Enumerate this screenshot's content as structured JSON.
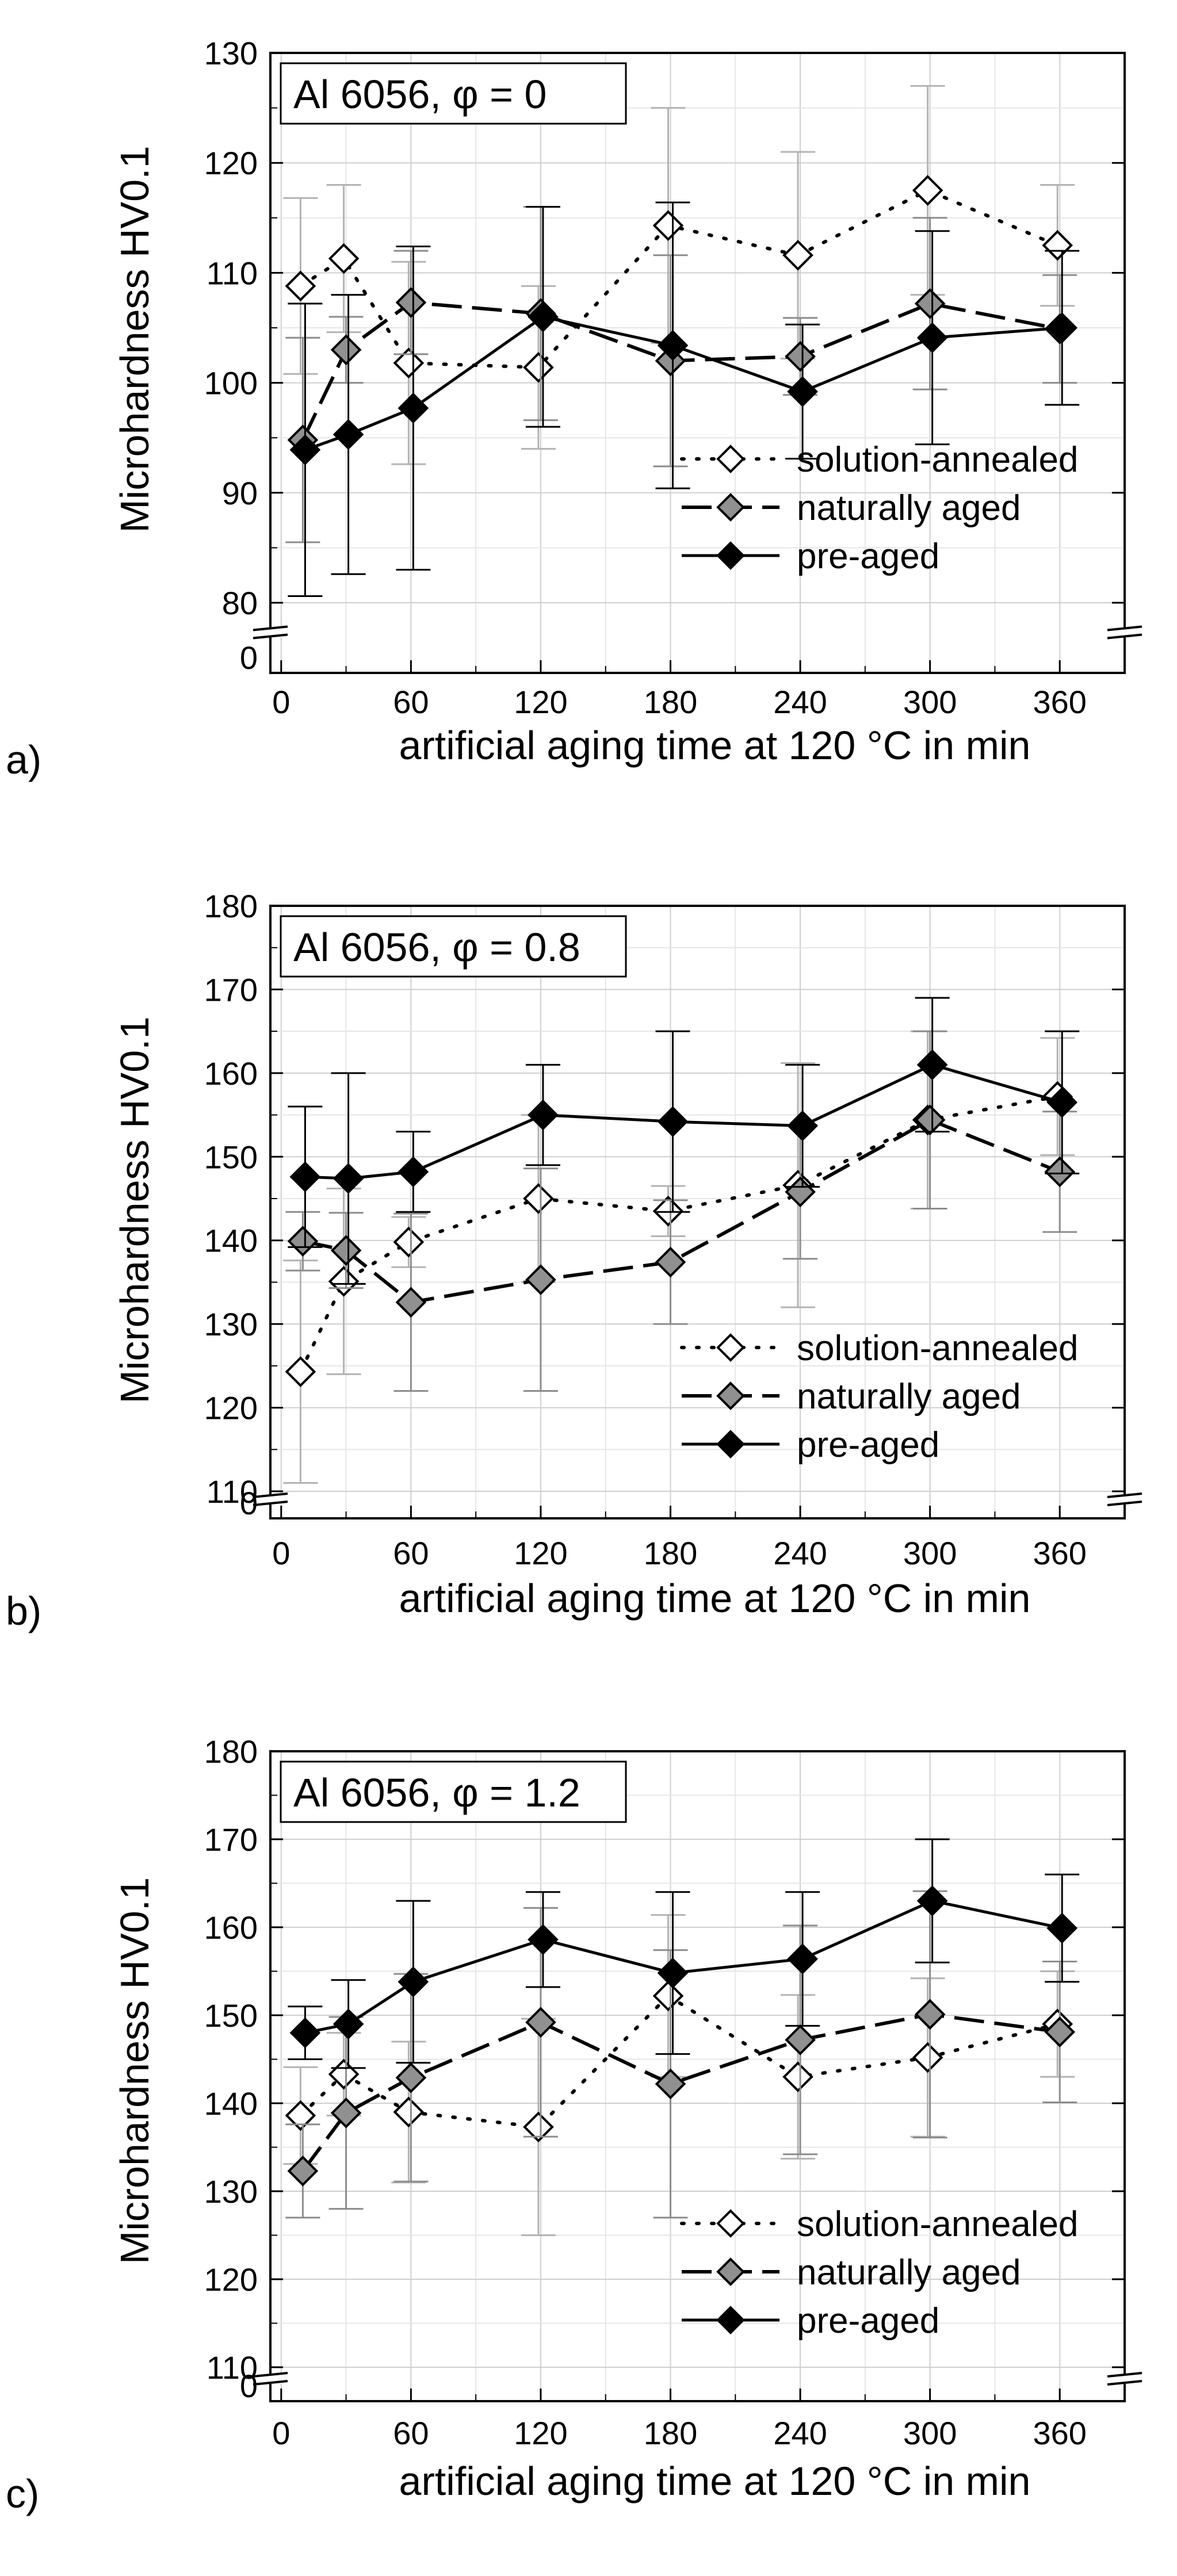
{
  "figure": {
    "legend_entries": [
      "solution-annealed",
      "naturally aged",
      "pre-aged"
    ]
  },
  "chart_data": [
    {
      "type": "line",
      "panel_label": "a)",
      "title": "Al 6056, φ = 0",
      "xlabel": "artificial aging time at 120 °C in min",
      "ylabel": "Microhardness HV0.1",
      "xlim": [
        -5,
        390
      ],
      "ylim": [
        80,
        130
      ],
      "axis_break": true,
      "x_ticks": [
        0,
        60,
        120,
        180,
        240,
        300,
        360
      ],
      "y_ticks": [
        80,
        90,
        100,
        110,
        120,
        130
      ],
      "y_zero_label": "0",
      "grid": true,
      "legend_position": "bottom-right",
      "x": [
        10,
        30,
        60,
        120,
        180,
        240,
        300,
        360
      ],
      "series": [
        {
          "name": "solution-annealed",
          "style": "dotted",
          "marker_color": "#ffffff",
          "values": [
            108.8,
            111.3,
            101.8,
            101.4,
            114.3,
            111.6,
            117.5,
            112.5
          ],
          "errors": [
            8.0,
            6.7,
            9.2,
            7.4,
            10.7,
            9.4,
            9.5,
            5.5
          ]
        },
        {
          "name": "naturally aged",
          "style": "dashed",
          "marker_color": "#909090",
          "values": [
            94.8,
            103.0,
            107.3,
            106.3,
            102.0,
            102.4,
            107.2,
            104.9
          ],
          "errors": [
            9.3,
            3.0,
            4.7,
            9.7,
            9.6,
            3.5,
            7.8,
            4.9
          ]
        },
        {
          "name": "pre-aged",
          "style": "solid",
          "marker_color": "#000000",
          "values": [
            93.9,
            95.3,
            97.7,
            106.0,
            103.4,
            99.2,
            104.1,
            105.0
          ],
          "errors": [
            13.3,
            12.7,
            14.7,
            10.0,
            13.0,
            6.1,
            9.7,
            7.0
          ]
        }
      ]
    },
    {
      "type": "line",
      "panel_label": "b)",
      "title": "Al 6056, φ = 0.8",
      "xlabel": "artificial aging time at 120 °C in min",
      "ylabel": "Microhardness HV0.1",
      "xlim": [
        -5,
        390
      ],
      "ylim": [
        110,
        180
      ],
      "axis_break": true,
      "x_ticks": [
        0,
        60,
        120,
        180,
        240,
        300,
        360
      ],
      "y_ticks": [
        110,
        120,
        130,
        140,
        150,
        160,
        170,
        180
      ],
      "y_zero_label": "0",
      "grid": true,
      "legend_position": "bottom-right",
      "x": [
        10,
        30,
        60,
        120,
        180,
        240,
        300,
        360
      ],
      "series": [
        {
          "name": "solution-annealed",
          "style": "dotted",
          "marker_color": "#ffffff",
          "values": [
            124.3,
            135.1,
            139.8,
            145.0,
            143.5,
            146.6,
            154.4,
            157.2
          ],
          "errors": [
            13.3,
            11.1,
            3.0,
            10.0,
            3.0,
            14.6,
            10.6,
            7.0
          ]
        },
        {
          "name": "naturally aged",
          "style": "dashed",
          "marker_color": "#909090",
          "values": [
            139.9,
            138.8,
            132.6,
            135.3,
            137.4,
            145.8,
            154.4,
            148.2
          ],
          "errors": [
            3.5,
            4.5,
            10.6,
            13.3,
            7.4,
            8.0,
            10.6,
            7.2
          ]
        },
        {
          "name": "pre-aged",
          "style": "solid",
          "marker_color": "#000000",
          "values": [
            147.6,
            147.4,
            148.2,
            155.0,
            154.2,
            153.7,
            161.0,
            156.5
          ],
          "errors": [
            8.4,
            12.6,
            4.8,
            6.0,
            10.8,
            7.3,
            8.0,
            8.5
          ]
        }
      ]
    },
    {
      "type": "line",
      "panel_label": "c)",
      "title": "Al 6056, φ = 1.2",
      "xlabel": "artificial aging time at 120 °C in min",
      "ylabel": "Microhardness HV0.1",
      "xlim": [
        -5,
        390
      ],
      "ylim": [
        110,
        180
      ],
      "axis_break": true,
      "x_ticks": [
        0,
        60,
        120,
        180,
        240,
        300,
        360
      ],
      "y_ticks": [
        110,
        120,
        130,
        140,
        150,
        160,
        170,
        180
      ],
      "y_zero_label": "0",
      "grid": true,
      "legend_position": "bottom-right",
      "x": [
        10,
        30,
        60,
        120,
        180,
        240,
        300,
        360
      ],
      "series": [
        {
          "name": "solution-annealed",
          "style": "dotted",
          "marker_color": "#ffffff",
          "values": [
            138.6,
            143.3,
            139.0,
            137.3,
            152.2,
            143.0,
            145.2,
            149.0
          ],
          "errors": [
            5.5,
            4.7,
            8.0,
            12.3,
            9.2,
            9.3,
            9.0,
            6.0
          ]
        },
        {
          "name": "naturally aged",
          "style": "dashed",
          "marker_color": "#909090",
          "values": [
            132.3,
            138.9,
            142.9,
            149.2,
            142.2,
            147.2,
            150.1,
            148.1
          ],
          "errors": [
            5.3,
            10.9,
            11.8,
            13.0,
            15.2,
            13.0,
            14.0,
            8.0
          ]
        },
        {
          "name": "pre-aged",
          "style": "solid",
          "marker_color": "#000000",
          "values": [
            148.0,
            149.0,
            153.8,
            158.6,
            154.8,
            156.4,
            163.0,
            159.9
          ],
          "errors": [
            3.0,
            5.0,
            9.2,
            5.4,
            9.2,
            7.6,
            7.0,
            6.1
          ]
        }
      ]
    }
  ]
}
